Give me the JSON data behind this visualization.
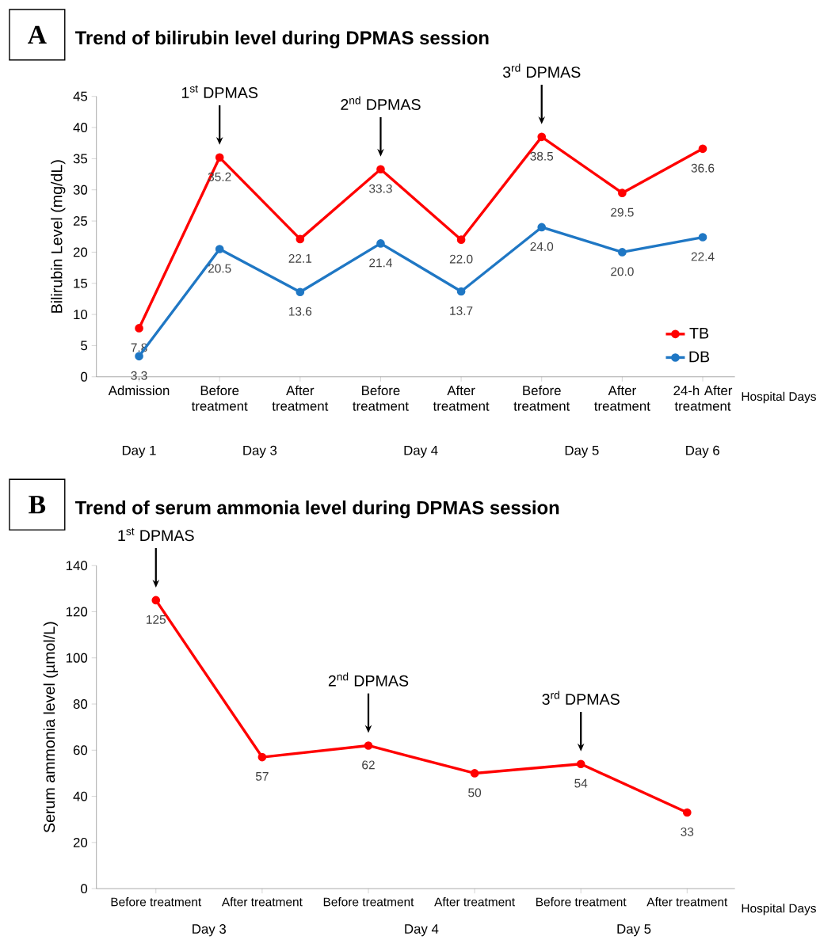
{
  "chart_data": [
    {
      "type": "line",
      "title": "Trend of bilirubin level during DPMAS session",
      "ylabel": "Bilirubin Level (mg/dL)",
      "xlabel": "Hospital Days",
      "categories": [
        "Admission",
        "Before treatment",
        "After treatment",
        "Before treatment",
        "After treatment",
        "Before treatment",
        "After treatment",
        "24-h After treatment"
      ],
      "series": [
        {
          "name": "TB",
          "color": "#ff0000",
          "values": [
            7.8,
            35.2,
            22.1,
            33.3,
            22.0,
            38.5,
            29.5,
            36.6
          ],
          "value_labels": [
            "7.8",
            "35.2",
            "22.1",
            "33.3",
            "22.0",
            "38.5",
            "29.5",
            "36.6"
          ]
        },
        {
          "name": "DB",
          "color": "#1f77c4",
          "values": [
            3.3,
            20.5,
            13.6,
            21.4,
            13.7,
            24.0,
            20.0,
            22.4
          ],
          "value_labels": [
            "3.3",
            "20.5",
            "13.6",
            "21.4",
            "13.7",
            "24.0",
            "20.0",
            "22.4"
          ]
        }
      ],
      "ylim": [
        0,
        45
      ],
      "yticks": [
        0,
        5,
        10,
        15,
        20,
        25,
        30,
        35,
        40,
        45
      ],
      "marker": "circle",
      "line_style": "solid",
      "grid": false,
      "legend": "bottom right",
      "annotations": [
        "A",
        "1$^{st}$ DPMAS",
        "2$^{nd}$ DPMAS",
        "3$^{rd}$  DPMAS",
        "Day 1",
        "Day 3",
        "Day 4",
        "Day 5",
        "Day 6"
      ]
    },
    {
      "type": "line",
      "title": "Trend of serum ammonia level during DPMAS session",
      "ylabel": "Serum ammonia level (µmol/L)",
      "xlabel": "Hospital Days",
      "categories": [
        "Before treatment",
        "After treatment",
        "Before treatment",
        "After treatment",
        "Before treatment",
        "After treatment"
      ],
      "series": [
        {
          "color": "#ff0000",
          "values": [
            125,
            57,
            62,
            50,
            54,
            33
          ]
        }
      ],
      "ylim": [
        0,
        140
      ],
      "yticks": [
        0,
        20,
        40,
        60,
        80,
        100,
        120,
        140
      ],
      "data_labels": true,
      "marker": "circle",
      "line_style": "solid",
      "grid": false,
      "annotations": [
        "B",
        "1$^{st}$ DPMAS",
        "2$^{nd}$ DPMAS",
        "3$^{rd}$  DPMAS",
        "Day 3",
        "Day 4",
        "Day 5"
      ]
    }
  ]
}
